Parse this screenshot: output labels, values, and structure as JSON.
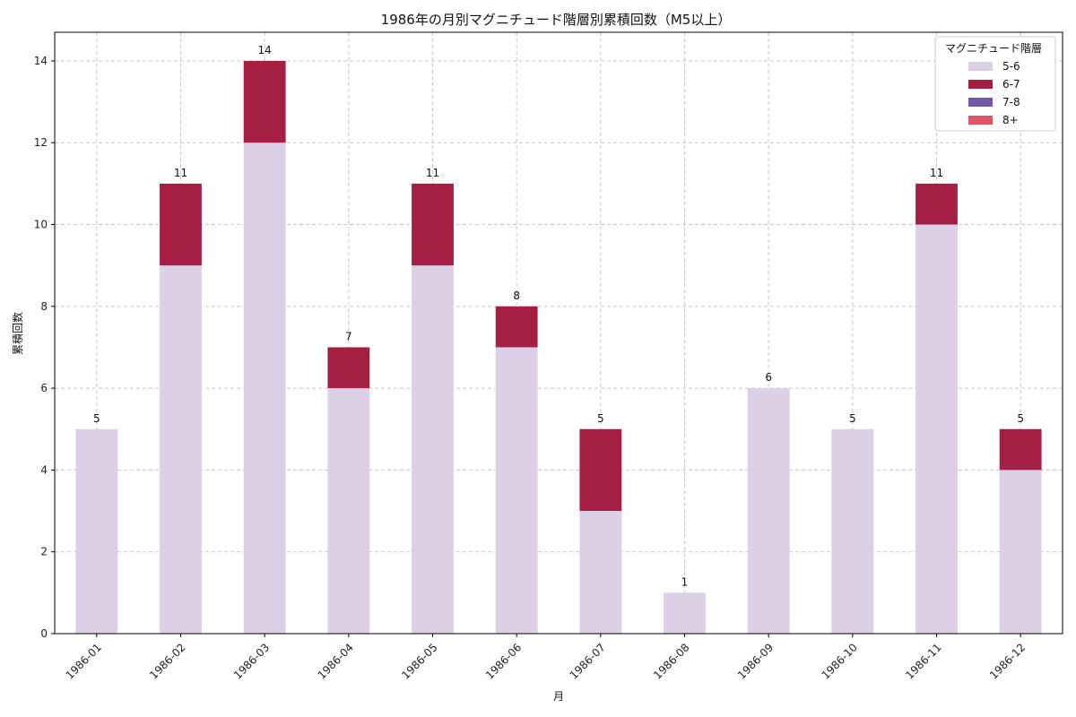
{
  "chart_data": {
    "type": "bar",
    "stacked": true,
    "title": "1986年の月別マグニチュード階層別累積回数（M5以上）",
    "xlabel": "月",
    "ylabel": "累積回数",
    "categories": [
      "1986-01",
      "1986-02",
      "1986-03",
      "1986-04",
      "1986-05",
      "1986-06",
      "1986-07",
      "1986-08",
      "1986-09",
      "1986-10",
      "1986-11",
      "1986-12"
    ],
    "series": [
      {
        "name": "5-6",
        "color": "#dcd0e6",
        "values": [
          5,
          9,
          12,
          6,
          9,
          7,
          3,
          1,
          6,
          5,
          10,
          4
        ]
      },
      {
        "name": "6-7",
        "color": "#a51f45",
        "values": [
          0,
          2,
          2,
          1,
          2,
          1,
          2,
          0,
          0,
          0,
          1,
          1
        ]
      },
      {
        "name": "7-8",
        "color": "#7359a6",
        "values": [
          0,
          0,
          0,
          0,
          0,
          0,
          0,
          0,
          0,
          0,
          0,
          0
        ]
      },
      {
        "name": "8+",
        "color": "#e05566",
        "values": [
          0,
          0,
          0,
          0,
          0,
          0,
          0,
          0,
          0,
          0,
          0,
          0
        ]
      }
    ],
    "totals": [
      5,
      11,
      14,
      7,
      11,
      8,
      5,
      1,
      6,
      5,
      11,
      5
    ],
    "ylim": [
      0,
      14.7
    ],
    "yticks": [
      0,
      2,
      4,
      6,
      8,
      10,
      12,
      14
    ],
    "grid": true,
    "legend": {
      "title": "マグニチュード階層",
      "placement": "top-right"
    }
  }
}
